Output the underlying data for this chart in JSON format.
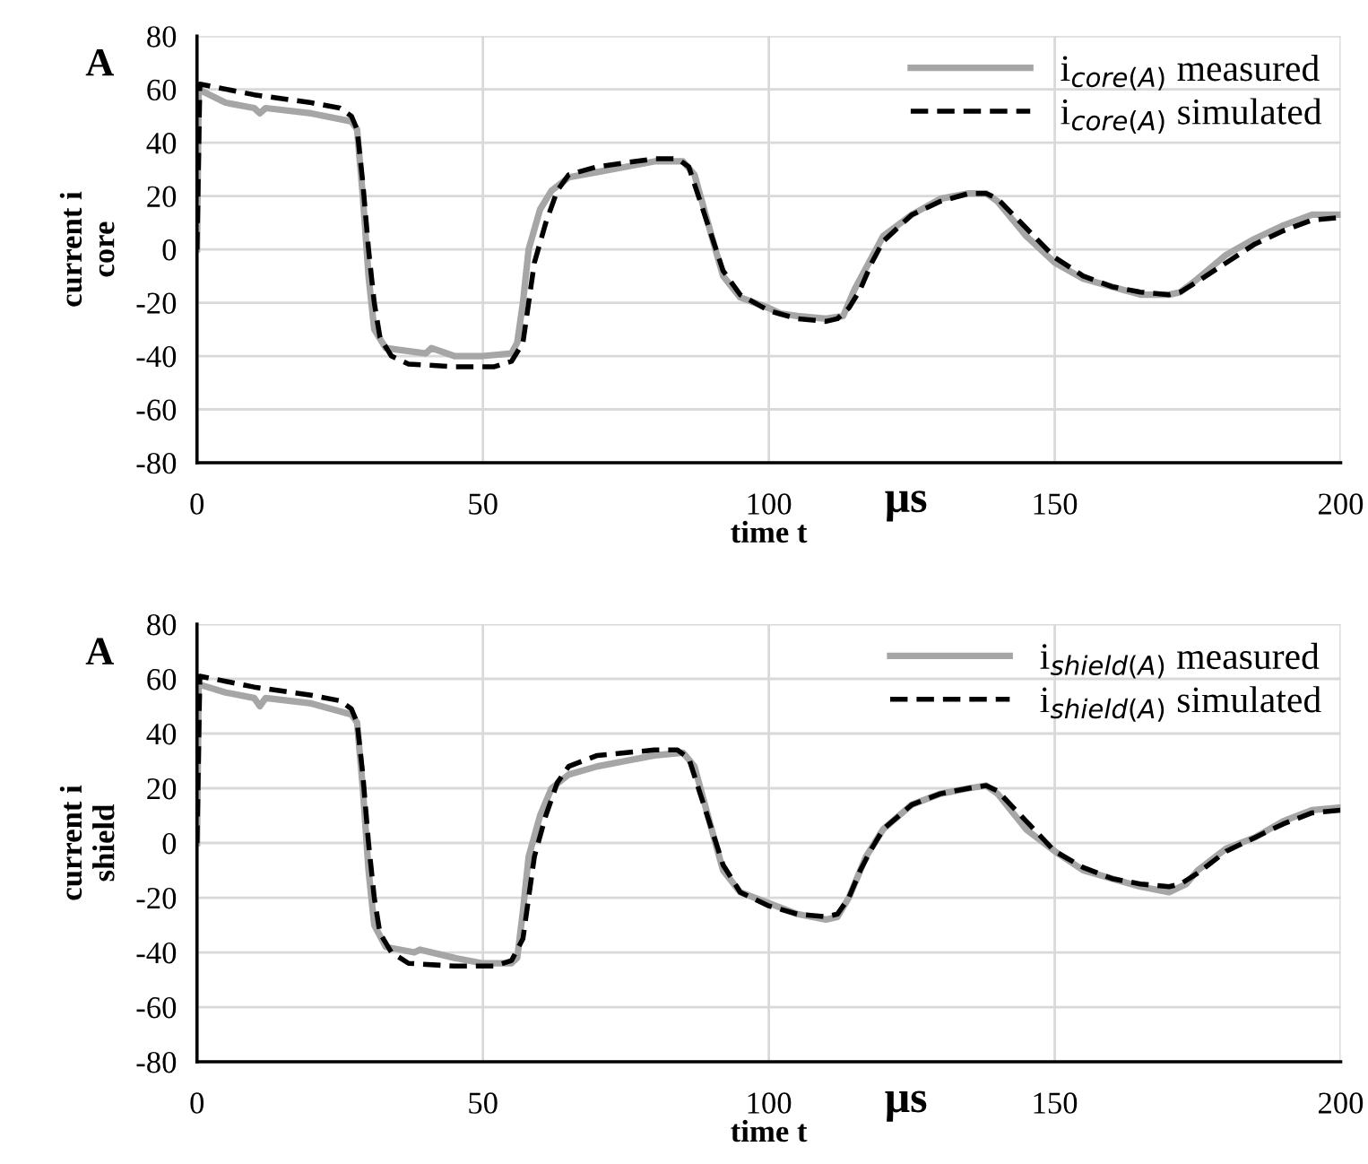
{
  "chart_data": [
    {
      "type": "line",
      "ylabel": "current i\ncore",
      "xlabel": "time t",
      "annotations": [
        "A",
        "μs"
      ],
      "xlim": [
        0,
        200
      ],
      "xticks": [
        0,
        50,
        100,
        150,
        200
      ],
      "ylim": [
        -80,
        80
      ],
      "yticks": [
        -80,
        -60,
        -40,
        -20,
        0,
        20,
        40,
        60,
        80
      ],
      "grid": true,
      "legend": "top right",
      "series": [
        {
          "name": "i$_{core(A)}$ measured",
          "color": "#a6a6a6",
          "line_style": "solid",
          "x": [
            0,
            0.3,
            5,
            10,
            11,
            12,
            20,
            27,
            28,
            29,
            30,
            31,
            33,
            40,
            41,
            45,
            50,
            55,
            56,
            57,
            58,
            60,
            62,
            65,
            70,
            75,
            80,
            85,
            87,
            90,
            92,
            95,
            100,
            102,
            105,
            110,
            113,
            115,
            118,
            120,
            125,
            130,
            135,
            138,
            140,
            145,
            150,
            155,
            160,
            165,
            170,
            172,
            175,
            180,
            185,
            190,
            195,
            200
          ],
          "values": [
            0,
            60,
            55,
            53,
            51,
            53,
            51,
            48,
            45,
            20,
            -10,
            -30,
            -37,
            -39,
            -37,
            -40,
            -40,
            -39,
            -35,
            -20,
            0,
            15,
            22,
            27,
            29,
            31,
            33,
            33,
            28,
            5,
            -10,
            -18,
            -22,
            -24,
            -25,
            -26,
            -25,
            -15,
            -3,
            5,
            13,
            19,
            21,
            21,
            18,
            5,
            -5,
            -11,
            -14,
            -17,
            -17,
            -16,
            -11,
            -2,
            4,
            9,
            13,
            13
          ]
        },
        {
          "name": "i$_{core(A)}$ simulated",
          "color": "#000000",
          "line_style": "dashed",
          "x": [
            0,
            0.5,
            10,
            20,
            25,
            27,
            28,
            29,
            30,
            31,
            32,
            34,
            37,
            45,
            52,
            55,
            57,
            58,
            59,
            61,
            63,
            65,
            70,
            80,
            84,
            86,
            88,
            90,
            92,
            95,
            100,
            105,
            110,
            112,
            114,
            116,
            118,
            120,
            125,
            130,
            135,
            138,
            140,
            145,
            150,
            155,
            160,
            165,
            170,
            172,
            175,
            180,
            185,
            190,
            195,
            200
          ],
          "values": [
            0,
            62,
            58,
            55,
            53,
            50,
            45,
            25,
            0,
            -20,
            -33,
            -40,
            -43,
            -44,
            -44,
            -42,
            -35,
            -20,
            -5,
            10,
            22,
            28,
            31,
            34,
            34,
            31,
            18,
            5,
            -8,
            -17,
            -23,
            -26,
            -27,
            -26,
            -22,
            -15,
            -5,
            3,
            13,
            18,
            21,
            21,
            19,
            8,
            -3,
            -10,
            -14,
            -16,
            -17,
            -16,
            -12,
            -5,
            2,
            7,
            11,
            12
          ]
        }
      ]
    },
    {
      "type": "line",
      "ylabel": "current i\nshield",
      "xlabel": "time t",
      "annotations": [
        "A",
        "μs"
      ],
      "xlim": [
        0,
        200
      ],
      "xticks": [
        0,
        50,
        100,
        150,
        200
      ],
      "ylim": [
        -80,
        80
      ],
      "yticks": [
        -80,
        -60,
        -40,
        -20,
        0,
        20,
        40,
        60,
        80
      ],
      "grid": true,
      "legend": "top right",
      "series": [
        {
          "name": "i$_{shield(A)}$ measured",
          "color": "#a6a6a6",
          "line_style": "solid",
          "x": [
            0,
            0.3,
            5,
            10,
            11,
            12,
            20,
            27,
            28,
            29,
            30,
            31,
            33,
            38,
            39,
            45,
            50,
            55,
            56,
            57,
            58,
            60,
            62,
            65,
            70,
            75,
            80,
            85,
            87,
            90,
            92,
            95,
            100,
            105,
            110,
            112,
            114,
            117,
            120,
            125,
            130,
            135,
            138,
            140,
            145,
            150,
            155,
            160,
            165,
            170,
            173,
            175,
            180,
            185,
            190,
            195,
            200
          ],
          "values": [
            0,
            58,
            55,
            53,
            50,
            53,
            51,
            47,
            44,
            20,
            -10,
            -30,
            -38,
            -40,
            -39,
            -42,
            -44,
            -44,
            -42,
            -25,
            -5,
            10,
            20,
            25,
            28,
            30,
            32,
            33,
            28,
            5,
            -10,
            -18,
            -22,
            -26,
            -28,
            -27,
            -20,
            -5,
            5,
            14,
            18,
            20,
            21,
            18,
            5,
            -3,
            -10,
            -13,
            -16,
            -18,
            -15,
            -10,
            -2,
            2,
            8,
            12,
            13
          ]
        },
        {
          "name": "i$_{shield(A)}$ simulated",
          "color": "#000000",
          "line_style": "dashed",
          "x": [
            0,
            0.5,
            10,
            20,
            25,
            27,
            28,
            29,
            30,
            31,
            32,
            34,
            37,
            45,
            52,
            55,
            57,
            58,
            59,
            61,
            63,
            65,
            70,
            80,
            84,
            86,
            88,
            90,
            92,
            95,
            100,
            105,
            110,
            112,
            114,
            116,
            118,
            120,
            125,
            130,
            135,
            138,
            140,
            145,
            150,
            155,
            160,
            165,
            170,
            172,
            175,
            180,
            185,
            190,
            195,
            200
          ],
          "values": [
            0,
            61,
            57,
            54,
            52,
            49,
            44,
            25,
            0,
            -20,
            -33,
            -40,
            -44,
            -45,
            -45,
            -43,
            -35,
            -20,
            -5,
            10,
            22,
            28,
            32,
            34,
            34,
            31,
            18,
            5,
            -8,
            -18,
            -23,
            -26,
            -27,
            -26,
            -20,
            -10,
            -2,
            5,
            14,
            18,
            20,
            21,
            19,
            8,
            -3,
            -9,
            -13,
            -15,
            -16,
            -15,
            -11,
            -3,
            2,
            7,
            11,
            12
          ]
        }
      ]
    }
  ]
}
